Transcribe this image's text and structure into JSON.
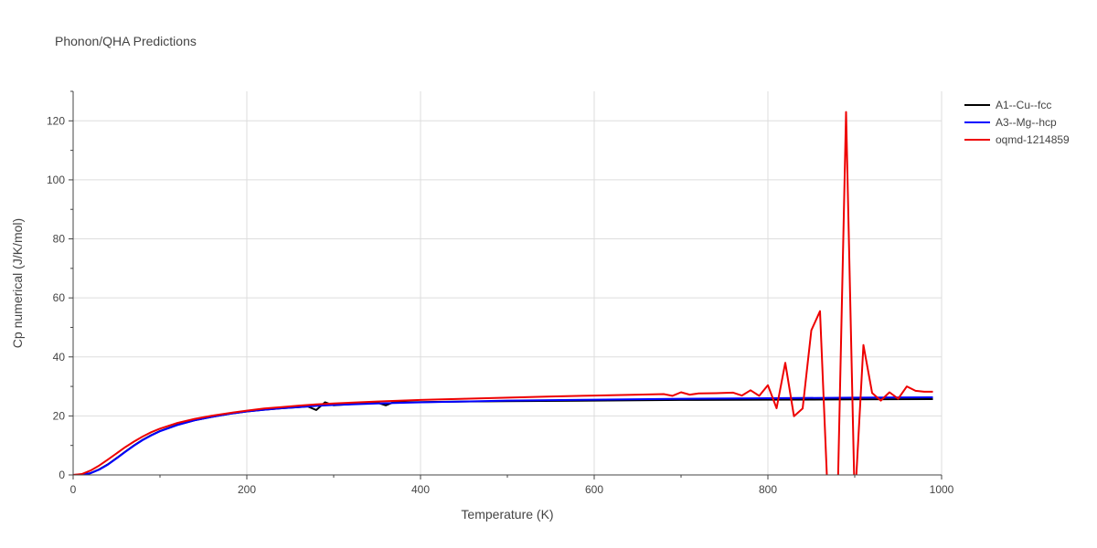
{
  "chart_data": {
    "type": "line",
    "title": "Phonon/QHA Predictions",
    "xlabel": "Temperature (K)",
    "ylabel": "Cp numerical (J/K/mol)",
    "xlim": [
      0,
      1000
    ],
    "ylim": [
      0,
      130
    ],
    "xticks": [
      0,
      200,
      400,
      600,
      800,
      1000
    ],
    "yticks": [
      0,
      20,
      40,
      60,
      80,
      100,
      120
    ],
    "grid": true,
    "legend_position": "top-right",
    "series": [
      {
        "name": "A1--Cu--fcc",
        "color": "#000000",
        "x": [
          0,
          10,
          20,
          30,
          40,
          50,
          60,
          70,
          80,
          90,
          100,
          120,
          140,
          160,
          180,
          200,
          220,
          240,
          260,
          270,
          280,
          290,
          300,
          320,
          340,
          350,
          360,
          370,
          380,
          400,
          450,
          500,
          600,
          700,
          800,
          900,
          990
        ],
        "y": [
          0,
          0.1,
          0.6,
          1.9,
          3.6,
          5.7,
          7.9,
          10.0,
          11.9,
          13.5,
          14.9,
          17.0,
          18.5,
          19.7,
          20.7,
          21.5,
          22.1,
          22.6,
          23.0,
          23.2,
          22.0,
          24.6,
          23.6,
          24.0,
          24.3,
          24.5,
          23.6,
          24.8,
          24.6,
          24.7,
          24.9,
          25.0,
          25.2,
          25.4,
          25.5,
          25.6,
          25.7
        ]
      },
      {
        "name": "A3--Mg--hcp",
        "color": "#0000ff",
        "x": [
          0,
          10,
          20,
          30,
          40,
          50,
          60,
          70,
          80,
          90,
          100,
          120,
          140,
          160,
          180,
          200,
          220,
          240,
          260,
          280,
          300,
          350,
          400,
          450,
          500,
          600,
          700,
          800,
          900,
          990
        ],
        "y": [
          0,
          0.1,
          0.6,
          1.8,
          3.5,
          5.6,
          7.8,
          9.9,
          11.8,
          13.4,
          14.8,
          16.9,
          18.5,
          19.7,
          20.7,
          21.5,
          22.1,
          22.6,
          23.0,
          23.4,
          23.7,
          24.2,
          24.6,
          24.9,
          25.2,
          25.5,
          25.8,
          26.0,
          26.2,
          26.3
        ]
      },
      {
        "name": "oqmd-1214859",
        "color": "#ee0000",
        "x": [
          0,
          10,
          20,
          30,
          40,
          50,
          60,
          70,
          80,
          90,
          100,
          120,
          140,
          160,
          180,
          200,
          220,
          240,
          260,
          280,
          300,
          350,
          400,
          450,
          500,
          550,
          600,
          650,
          680,
          690,
          700,
          710,
          720,
          740,
          760,
          770,
          780,
          790,
          800,
          810,
          820,
          830,
          840,
          850,
          860,
          870,
          880,
          890,
          900,
          910,
          920,
          930,
          940,
          950,
          960,
          970,
          980,
          990
        ],
        "y": [
          0,
          0.3,
          1.5,
          3.2,
          5.2,
          7.3,
          9.4,
          11.3,
          13.0,
          14.5,
          15.7,
          17.6,
          19.0,
          20.1,
          21.0,
          21.8,
          22.5,
          23.0,
          23.5,
          23.9,
          24.2,
          24.9,
          25.4,
          25.8,
          26.2,
          26.6,
          26.9,
          27.2,
          27.4,
          26.8,
          28.0,
          27.2,
          27.6,
          27.7,
          27.9,
          26.9,
          28.7,
          26.8,
          30.4,
          22.6,
          38.0,
          19.9,
          22.5,
          49.0,
          55.5,
          -15.0,
          -12.0,
          123.0,
          -10.0,
          44.0,
          27.8,
          25.2,
          28.0,
          25.8,
          30.0,
          28.5,
          28.2,
          28.2
        ]
      }
    ]
  }
}
